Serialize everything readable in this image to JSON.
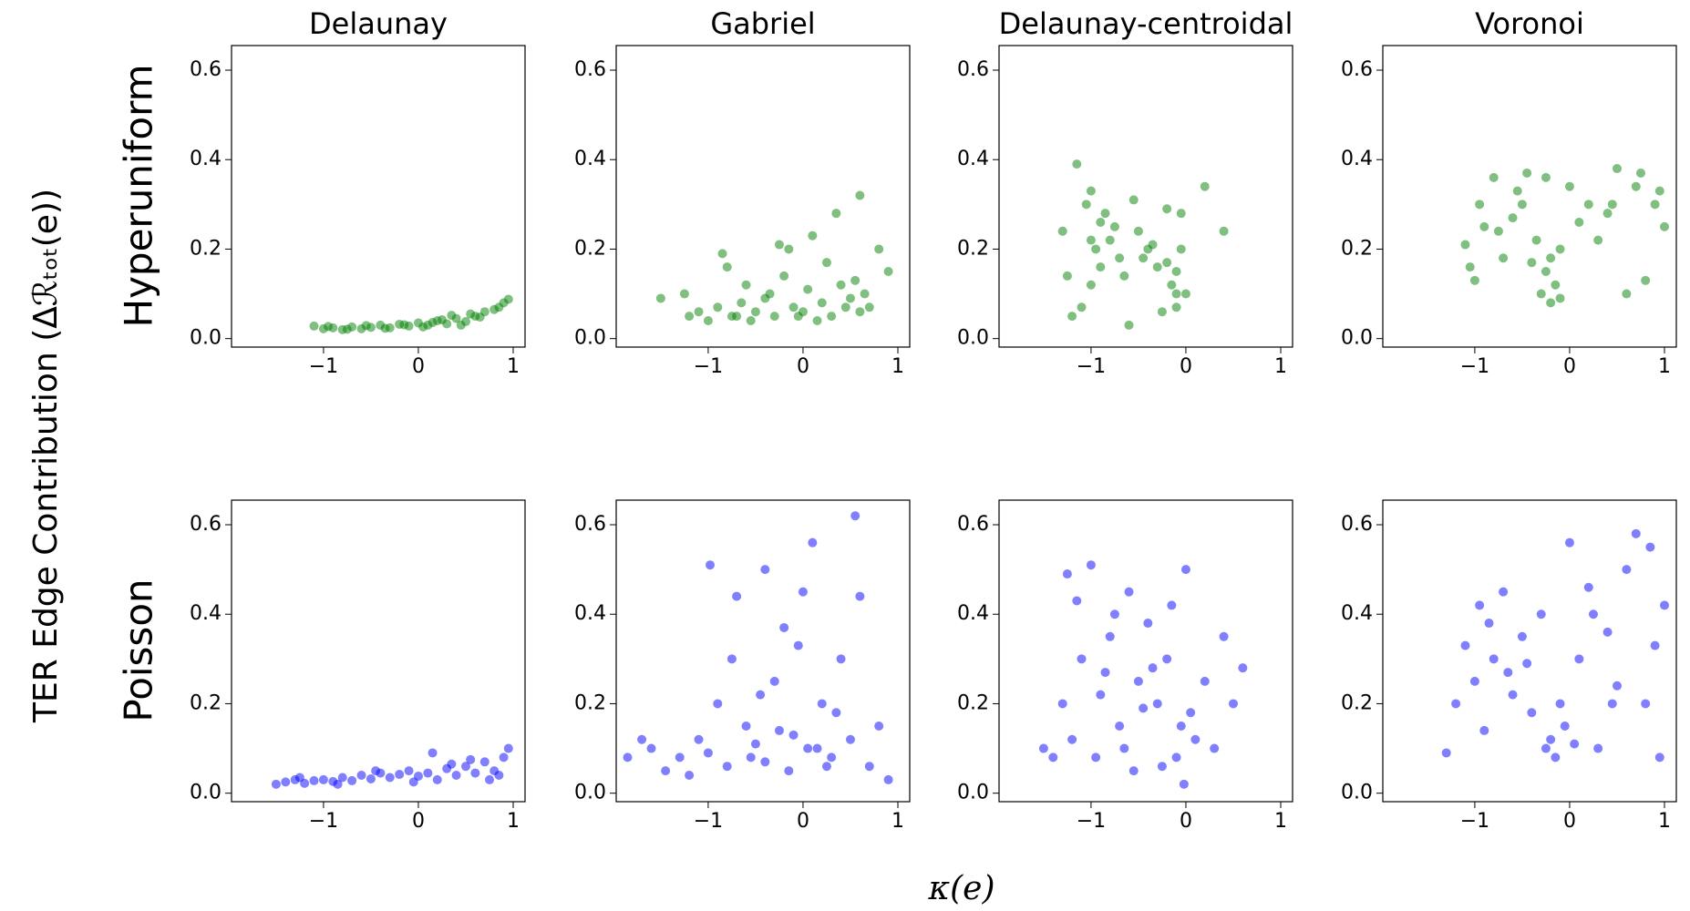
{
  "figure": {
    "ylabel": "TER Edge Contribution (Δℛₜₒₜ(e))",
    "xlabel": "κ(e)",
    "row_labels": [
      "Hyperuniform",
      "Poisson"
    ]
  },
  "chart_data": [
    {
      "type": "scatter",
      "title": "Delaunay",
      "color": "#008000",
      "alpha": 0.5,
      "x": [
        -1.1,
        -1.0,
        -0.9,
        -0.8,
        -0.7,
        -0.6,
        -0.5,
        -0.4,
        -0.3,
        -0.2,
        -0.1,
        0,
        0.1,
        0.2,
        0.3,
        0.4,
        0.5,
        0.6,
        0.7,
        0.8,
        0.9,
        0.95,
        -0.95,
        -0.75,
        -0.55,
        -0.35,
        -0.15,
        0.05,
        0.25,
        0.45,
        0.65,
        0.85,
        0.35,
        0.55,
        0.15
      ],
      "values": [
        0.028,
        0.022,
        0.024,
        0.02,
        0.026,
        0.022,
        0.025,
        0.03,
        0.024,
        0.032,
        0.028,
        0.035,
        0.03,
        0.04,
        0.033,
        0.045,
        0.038,
        0.05,
        0.06,
        0.065,
        0.08,
        0.088,
        0.027,
        0.021,
        0.029,
        0.023,
        0.031,
        0.026,
        0.042,
        0.03,
        0.048,
        0.07,
        0.052,
        0.055,
        0.036
      ],
      "xlim": [
        -1.97,
        1.125
      ],
      "ylim": [
        -0.019,
        0.655
      ],
      "xticks": [
        {
          "value": -1,
          "label": "−1"
        },
        0,
        1
      ],
      "yticks": [
        {
          "value": 0,
          "label": "0.0"
        },
        0.2,
        0.4,
        0.6
      ]
    },
    {
      "type": "scatter",
      "title": "Gabriel",
      "color": "#008000",
      "alpha": 0.5,
      "x": [
        -1.5,
        -1.25,
        -1.2,
        -1.1,
        -1.0,
        -0.9,
        -0.8,
        -0.7,
        -0.6,
        -0.5,
        -0.4,
        -0.3,
        -0.2,
        -0.1,
        0,
        0.1,
        0.2,
        0.3,
        0.4,
        0.5,
        0.6,
        0.7,
        0.8,
        0.9,
        -0.85,
        -0.55,
        -0.25,
        0.05,
        0.35,
        0.6,
        -0.65,
        -0.35,
        -0.05,
        0.25,
        0.15,
        0.55,
        -0.75,
        0.45,
        -0.15,
        0.65
      ],
      "values": [
        0.09,
        0.1,
        0.05,
        0.06,
        0.04,
        0.07,
        0.16,
        0.05,
        0.12,
        0.06,
        0.09,
        0.05,
        0.14,
        0.07,
        0.06,
        0.23,
        0.08,
        0.05,
        0.12,
        0.09,
        0.32,
        0.07,
        0.2,
        0.15,
        0.19,
        0.04,
        0.21,
        0.11,
        0.28,
        0.06,
        0.08,
        0.1,
        0.05,
        0.17,
        0.04,
        0.13,
        0.05,
        0.07,
        0.2,
        0.1
      ],
      "xlim": [
        -1.97,
        1.125
      ],
      "ylim": [
        -0.019,
        0.655
      ],
      "xticks": [
        {
          "value": -1,
          "label": "−1"
        },
        0,
        1
      ],
      "yticks": [
        {
          "value": 0,
          "label": "0.0"
        },
        0.2,
        0.4,
        0.6
      ]
    },
    {
      "type": "scatter",
      "title": "Delaunay-centroidal",
      "color": "#008000",
      "alpha": 0.5,
      "x": [
        -1.3,
        -1.2,
        -1.15,
        -1.1,
        -1.05,
        -1.0,
        -1.0,
        -0.95,
        -0.9,
        -0.85,
        -0.8,
        -0.7,
        -0.6,
        -0.5,
        -0.4,
        -0.3,
        -0.2,
        -0.15,
        -0.1,
        -0.1,
        -0.05,
        0,
        0.2,
        0.4,
        -1.25,
        -0.75,
        -0.55,
        -0.35,
        -0.25,
        -0.65,
        -0.45,
        -0.05,
        -1.0,
        -0.1,
        -0.2,
        -0.9
      ],
      "values": [
        0.24,
        0.05,
        0.39,
        0.07,
        0.3,
        0.33,
        0.12,
        0.2,
        0.16,
        0.28,
        0.22,
        0.18,
        0.03,
        0.24,
        0.2,
        0.16,
        0.29,
        0.12,
        0.07,
        0.15,
        0.2,
        0.1,
        0.34,
        0.24,
        0.14,
        0.25,
        0.31,
        0.21,
        0.06,
        0.14,
        0.18,
        0.28,
        0.22,
        0.1,
        0.17,
        0.26
      ],
      "xlim": [
        -1.97,
        1.125
      ],
      "ylim": [
        -0.019,
        0.655
      ],
      "xticks": [
        {
          "value": -1,
          "label": "−1"
        },
        0,
        1
      ],
      "yticks": [
        {
          "value": 0,
          "label": "0.0"
        },
        0.2,
        0.4,
        0.6
      ]
    },
    {
      "type": "scatter",
      "title": "Voronoi",
      "color": "#008000",
      "alpha": 0.5,
      "x": [
        -1.1,
        -1.0,
        -0.95,
        -0.9,
        -0.8,
        -0.7,
        -0.6,
        -0.5,
        -0.45,
        -0.4,
        -0.35,
        -0.3,
        -0.25,
        -0.2,
        -0.15,
        -0.1,
        0,
        0.1,
        0.2,
        0.3,
        0.4,
        0.5,
        0.6,
        0.7,
        0.8,
        0.9,
        1.0,
        -0.75,
        -0.55,
        -0.2,
        -0.1,
        0.45,
        0.75,
        -1.05,
        -0.25,
        0.95
      ],
      "values": [
        0.21,
        0.13,
        0.3,
        0.25,
        0.36,
        0.18,
        0.27,
        0.3,
        0.37,
        0.17,
        0.22,
        0.1,
        0.15,
        0.08,
        0.12,
        0.2,
        0.34,
        0.26,
        0.3,
        0.22,
        0.28,
        0.38,
        0.1,
        0.34,
        0.13,
        0.3,
        0.25,
        0.24,
        0.33,
        0.18,
        0.09,
        0.3,
        0.37,
        0.16,
        0.36,
        0.33
      ],
      "xlim": [
        -1.97,
        1.125
      ],
      "ylim": [
        -0.019,
        0.655
      ],
      "xticks": [
        {
          "value": -1,
          "label": "−1"
        },
        0,
        1
      ],
      "yticks": [
        {
          "value": 0,
          "label": "0.0"
        },
        0.2,
        0.4,
        0.6
      ]
    },
    {
      "type": "scatter",
      "color": "#0000ff",
      "alpha": 0.5,
      "x": [
        -1.5,
        -1.4,
        -1.3,
        -1.2,
        -1.1,
        -1.0,
        -0.9,
        -0.8,
        -0.7,
        -0.6,
        -0.5,
        -0.4,
        -0.3,
        -0.2,
        -0.1,
        0,
        0.1,
        0.15,
        0.2,
        0.3,
        0.4,
        0.5,
        0.6,
        0.7,
        0.8,
        0.9,
        0.95,
        -1.25,
        -0.85,
        -0.45,
        -0.05,
        0.35,
        0.75,
        0.55,
        0.85
      ],
      "values": [
        0.02,
        0.025,
        0.03,
        0.022,
        0.028,
        0.03,
        0.026,
        0.035,
        0.028,
        0.04,
        0.032,
        0.045,
        0.035,
        0.042,
        0.05,
        0.038,
        0.045,
        0.09,
        0.03,
        0.055,
        0.04,
        0.06,
        0.045,
        0.07,
        0.05,
        0.08,
        0.1,
        0.035,
        0.02,
        0.05,
        0.025,
        0.065,
        0.03,
        0.075,
        0.04
      ],
      "xlim": [
        -1.97,
        1.125
      ],
      "ylim": [
        -0.019,
        0.655
      ],
      "xticks": [
        {
          "value": -1,
          "label": "−1"
        },
        0,
        1
      ],
      "yticks": [
        {
          "value": 0,
          "label": "0.0"
        },
        0.2,
        0.4,
        0.6
      ]
    },
    {
      "type": "scatter",
      "color": "#0000ff",
      "alpha": 0.5,
      "x": [
        -1.85,
        -1.7,
        -1.6,
        -1.45,
        -1.3,
        -1.2,
        -1.1,
        -1.0,
        -0.98,
        -0.9,
        -0.8,
        -0.7,
        -0.6,
        -0.5,
        -0.4,
        -0.4,
        -0.3,
        -0.2,
        -0.1,
        0,
        0.05,
        0.1,
        0.2,
        0.3,
        0.4,
        0.5,
        0.55,
        0.6,
        0.7,
        0.8,
        0.9,
        -0.75,
        -0.45,
        -0.15,
        0.15,
        0.35,
        -0.55,
        -0.25,
        -0.05,
        0.25
      ],
      "values": [
        0.08,
        0.12,
        0.1,
        0.05,
        0.08,
        0.04,
        0.12,
        0.09,
        0.51,
        0.2,
        0.06,
        0.44,
        0.15,
        0.11,
        0.5,
        0.07,
        0.25,
        0.37,
        0.13,
        0.45,
        0.1,
        0.56,
        0.2,
        0.08,
        0.3,
        0.12,
        0.62,
        0.44,
        0.06,
        0.15,
        0.03,
        0.3,
        0.22,
        0.05,
        0.1,
        0.18,
        0.08,
        0.14,
        0.33,
        0.06
      ],
      "xlim": [
        -1.97,
        1.125
      ],
      "ylim": [
        -0.019,
        0.655
      ],
      "xticks": [
        {
          "value": -1,
          "label": "−1"
        },
        0,
        1
      ],
      "yticks": [
        {
          "value": 0,
          "label": "0.0"
        },
        0.2,
        0.4,
        0.6
      ]
    },
    {
      "type": "scatter",
      "color": "#0000ff",
      "alpha": 0.5,
      "x": [
        -1.5,
        -1.4,
        -1.3,
        -1.25,
        -1.2,
        -1.1,
        -1.0,
        -0.95,
        -0.9,
        -0.8,
        -0.7,
        -0.6,
        -0.55,
        -0.5,
        -0.4,
        -0.3,
        -0.2,
        -0.1,
        -0.05,
        0,
        0.1,
        0.2,
        0.3,
        0.4,
        0.5,
        0.6,
        -1.15,
        -0.85,
        -0.65,
        -0.45,
        -0.25,
        -0.15,
        -0.02,
        -0.75,
        -0.35,
        0.05
      ],
      "values": [
        0.1,
        0.08,
        0.2,
        0.49,
        0.12,
        0.3,
        0.51,
        0.08,
        0.22,
        0.35,
        0.15,
        0.45,
        0.05,
        0.25,
        0.38,
        0.2,
        0.3,
        0.08,
        0.15,
        0.5,
        0.12,
        0.25,
        0.1,
        0.35,
        0.2,
        0.28,
        0.43,
        0.27,
        0.1,
        0.19,
        0.06,
        0.42,
        0.02,
        0.4,
        0.28,
        0.18
      ],
      "xlim": [
        -1.97,
        1.125
      ],
      "ylim": [
        -0.019,
        0.655
      ],
      "xticks": [
        {
          "value": -1,
          "label": "−1"
        },
        0,
        1
      ],
      "yticks": [
        {
          "value": 0,
          "label": "0.0"
        },
        0.2,
        0.4,
        0.6
      ]
    },
    {
      "type": "scatter",
      "color": "#0000ff",
      "alpha": 0.5,
      "x": [
        -1.3,
        -1.2,
        -1.1,
        -1.0,
        -0.95,
        -0.9,
        -0.8,
        -0.7,
        -0.6,
        -0.5,
        -0.4,
        -0.3,
        -0.2,
        -0.15,
        -0.1,
        -0.05,
        0,
        0.1,
        0.2,
        0.3,
        0.4,
        0.5,
        0.6,
        0.7,
        0.8,
        0.9,
        0.95,
        1.0,
        -0.85,
        -0.45,
        -0.25,
        0.05,
        0.45,
        0.85,
        -0.65,
        0.25
      ],
      "values": [
        0.09,
        0.2,
        0.33,
        0.25,
        0.42,
        0.14,
        0.3,
        0.45,
        0.22,
        0.35,
        0.18,
        0.4,
        0.12,
        0.08,
        0.2,
        0.15,
        0.56,
        0.3,
        0.46,
        0.1,
        0.36,
        0.24,
        0.5,
        0.58,
        0.2,
        0.33,
        0.08,
        0.42,
        0.38,
        0.29,
        0.1,
        0.11,
        0.2,
        0.55,
        0.27,
        0.4
      ],
      "xlim": [
        -1.97,
        1.125
      ],
      "ylim": [
        -0.019,
        0.655
      ],
      "xticks": [
        {
          "value": -1,
          "label": "−1"
        },
        0,
        1
      ],
      "yticks": [
        {
          "value": 0,
          "label": "0.0"
        },
        0.2,
        0.4,
        0.6
      ]
    }
  ]
}
